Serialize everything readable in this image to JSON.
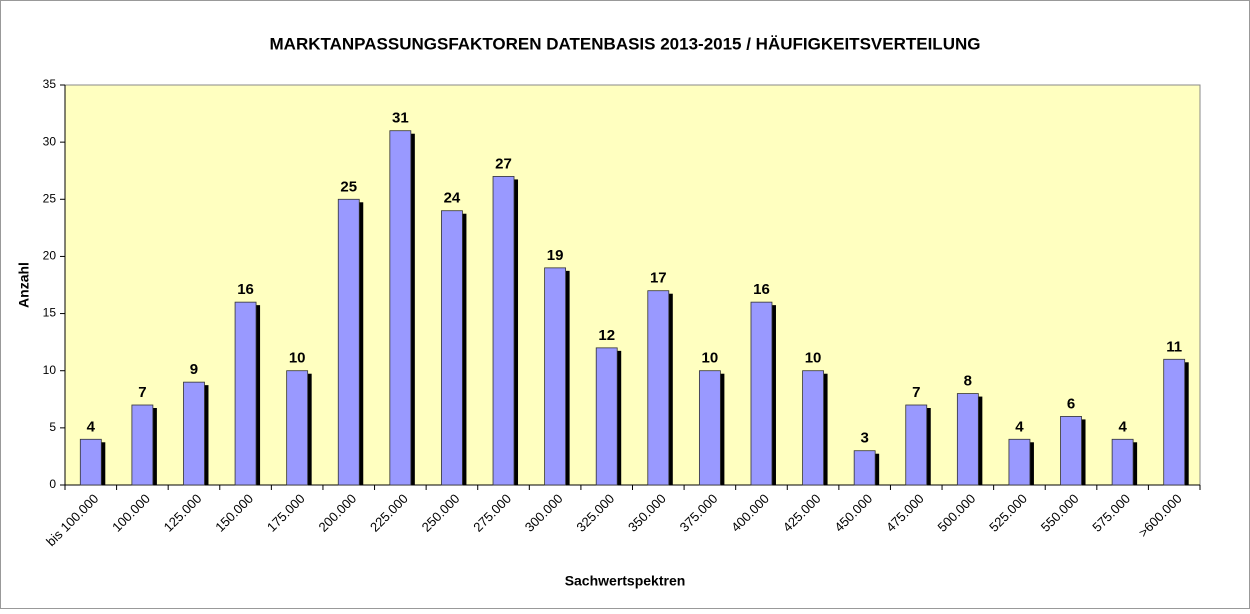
{
  "chart_data": {
    "type": "bar",
    "title": "MARKTANPASSUNGSFAKTOREN  DATENBASIS 2013-2015 / HÄUFIGKEITSVERTEILUNG",
    "x_label": "Sachwertspektren",
    "y_label": "Anzahl",
    "categories": [
      "bis 100.000",
      "100.000",
      "125.000",
      "150.000",
      "175.000",
      "200.000",
      "225.000",
      "250.000",
      "275.000",
      "300.000",
      "325.000",
      "350.000",
      "375.000",
      "400.000",
      "425.000",
      "450.000",
      "475.000",
      "500.000",
      "525.000",
      "550.000",
      "575.000",
      ">600.000"
    ],
    "values": [
      4,
      7,
      9,
      16,
      10,
      25,
      31,
      24,
      27,
      19,
      12,
      17,
      10,
      16,
      10,
      3,
      7,
      8,
      4,
      6,
      4,
      11
    ],
    "color": "#9999ff",
    "plot_background": "#ffffc0",
    "ylim": [
      0,
      35
    ],
    "yticks": [
      0,
      5,
      10,
      15,
      20,
      25,
      30,
      35
    ]
  }
}
